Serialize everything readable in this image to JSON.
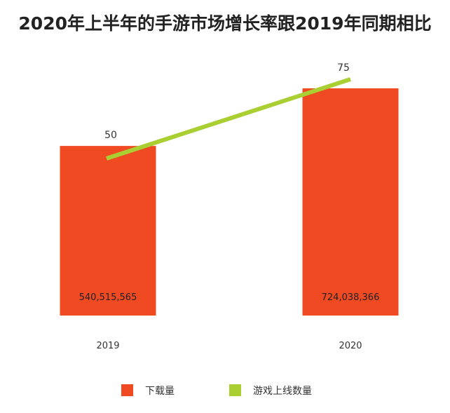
{
  "chart_data": {
    "type": "bar",
    "title": "2020年上半年的手游市场增长率跟2019年同期相比",
    "categories": [
      "2019",
      "2020"
    ],
    "series": [
      {
        "name": "下载量",
        "type": "bar",
        "color": "#f04a23",
        "values": [
          540515565,
          724038366
        ],
        "labels": [
          "540,515,565",
          "724,038,366"
        ]
      },
      {
        "name": "游戏上线数量",
        "type": "line",
        "color": "#a9cf32",
        "values": [
          50,
          75
        ],
        "labels": [
          "50",
          "75"
        ]
      }
    ],
    "legend_position": "bottom",
    "grid": false
  }
}
